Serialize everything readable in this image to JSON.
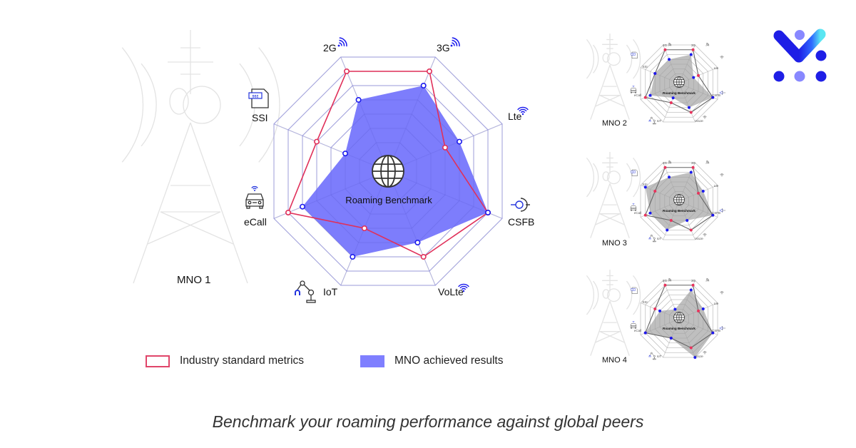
{
  "header": {
    "logo": {
      "name": "brand-logo",
      "colors": [
        "#1e1ee6",
        "#2f6bff",
        "#52e0f0",
        "#8888ff"
      ]
    }
  },
  "colors": {
    "industry_line": "#e0305a",
    "mno_fill": "#6f6ffc",
    "mno_point": "#1a1aee",
    "mini_fill": "#a9a9a9",
    "mini_line": "#666666",
    "mini_red": "#e8335c",
    "mini_blue": "#1a1aee",
    "grid": "#dcdcdc",
    "tower": "#e3e3e3"
  },
  "main": {
    "operator_label": "MNO 1",
    "center_title": "Roaming Benchmark",
    "axes": [
      {
        "label": "2G",
        "icon": "signal-icon"
      },
      {
        "label": "3G",
        "icon": "signal-icon"
      },
      {
        "label": "Lte",
        "icon": "wifi-icon"
      },
      {
        "label": "CSFB",
        "icon": "interface-icon"
      },
      {
        "label": "VoLte",
        "icon": "wifi-icon"
      },
      {
        "label": "IoT",
        "icon": "robot-arm-icon"
      },
      {
        "label": "eCall",
        "icon": "car-icon"
      },
      {
        "label": "SSI",
        "icon": "ssi-document-icon"
      }
    ]
  },
  "legend": {
    "industry": "Industry standard metrics",
    "mno": "MNO achieved results"
  },
  "mini_charts": [
    {
      "operator_label": "MNO 2"
    },
    {
      "operator_label": "MNO 3"
    },
    {
      "operator_label": "MNO 4"
    }
  ],
  "tagline": "Benchmark your roaming performance against global peers",
  "chart_data": [
    {
      "type": "radar",
      "title": "Roaming Benchmark",
      "subtitle": "MNO 1",
      "categories": [
        "2G",
        "3G",
        "Lte",
        "CSFB",
        "VoLte",
        "IoT",
        "eCall",
        "SSI"
      ],
      "scale": {
        "min": 0,
        "max": 8,
        "grid_levels": 8
      },
      "series": [
        {
          "name": "Industry standard metrics",
          "style": "line",
          "values": [
            7,
            7,
            4,
            7,
            6,
            4,
            7,
            5
          ]
        },
        {
          "name": "MNO achieved results",
          "style": "area",
          "values": [
            5,
            6,
            5,
            7,
            5,
            6,
            6,
            3
          ]
        }
      ],
      "legend_position": "bottom"
    },
    {
      "type": "radar",
      "title": "Roaming Benchmark",
      "subtitle": "MNO 2",
      "categories": [
        "2G",
        "3G",
        "Lte",
        "CSFB",
        "VoLte",
        "IoT",
        "eCall",
        "SSI"
      ],
      "scale": {
        "min": 0,
        "max": 8,
        "grid_levels": 8
      },
      "series": [
        {
          "name": "Industry standard metrics",
          "values": [
            7,
            7,
            4,
            7,
            6,
            4,
            7,
            5
          ]
        },
        {
          "name": "MNO achieved results",
          "values": [
            5,
            6,
            3,
            7,
            5,
            3,
            6,
            5
          ]
        }
      ]
    },
    {
      "type": "radar",
      "title": "Roaming Benchmark",
      "subtitle": "MNO 3",
      "categories": [
        "2G",
        "3G",
        "Lte",
        "CSFB",
        "VoLte",
        "IoT",
        "eCall",
        "SSI"
      ],
      "scale": {
        "min": 0,
        "max": 8,
        "grid_levels": 8
      },
      "series": [
        {
          "name": "Industry standard metrics",
          "values": [
            7,
            7,
            4,
            7,
            6,
            4,
            7,
            5
          ]
        },
        {
          "name": "MNO achieved results",
          "values": [
            5,
            6,
            5,
            7,
            4,
            6,
            6,
            7
          ]
        }
      ]
    },
    {
      "type": "radar",
      "title": "Roaming Benchmark",
      "subtitle": "MNO 4",
      "categories": [
        "2G",
        "3G",
        "Lte",
        "CSFB",
        "VoLte",
        "IoT",
        "eCall",
        "SSI"
      ],
      "scale": {
        "min": 0,
        "max": 8,
        "grid_levels": 8
      },
      "series": [
        {
          "name": "Industry standard metrics",
          "values": [
            7,
            7,
            4,
            7,
            6,
            4,
            7,
            5
          ]
        },
        {
          "name": "MNO achieved results",
          "values": [
            2,
            6,
            5,
            7,
            8,
            4,
            7,
            4
          ]
        }
      ]
    }
  ]
}
